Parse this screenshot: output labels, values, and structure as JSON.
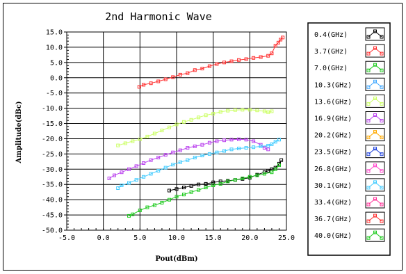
{
  "chart_data": {
    "type": "line",
    "title": "2nd Harmonic Wave",
    "xlabel": "Pout(dBm)",
    "ylabel": "Amplitude(dBc)",
    "xlim": [
      -5.0,
      25.0
    ],
    "ylim": [
      -50.0,
      15.0
    ],
    "xticks": [
      "-5.0",
      "0.0",
      "5.0",
      "10.0",
      "15.0",
      "20.0",
      "25.0"
    ],
    "yticks": [
      "15.0",
      "10.0",
      "5.0",
      "0.0",
      "-5.0",
      "-10.0",
      "-15.0",
      "-20.0",
      "-25.0",
      "-30.0",
      "-35.0",
      "-40.0",
      "-45.0",
      "-50.0"
    ],
    "grid": true,
    "legend_position": "right",
    "series": [
      {
        "name": "0.4(GHz)",
        "color": "#000000",
        "x": [
          9,
          10,
          11,
          12,
          13,
          14,
          15,
          16,
          17,
          18,
          19,
          20,
          21,
          22,
          22.5,
          23,
          23.5,
          24,
          24.3
        ],
        "y": [
          -37,
          -36.5,
          -36,
          -35.5,
          -35,
          -34.8,
          -34.3,
          -34,
          -33.8,
          -33.5,
          -33.2,
          -32.8,
          -31.8,
          -31,
          -30.5,
          -30,
          -29.5,
          -28.2,
          -27
        ]
      },
      {
        "name": "3.7(GHz)",
        "color": "#ff3030",
        "x": [
          4.9,
          5.5,
          6.5,
          7.5,
          8.5,
          9.5,
          10.5,
          11.5,
          12.5,
          13.5,
          14.5,
          15.5,
          16.5,
          17.5,
          18.5,
          19.5,
          20.5,
          21.5,
          22.5,
          23,
          23.5,
          23.9,
          24.2,
          24.5
        ],
        "y": [
          -3,
          -2.3,
          -1.8,
          -1.2,
          -0.5,
          0.2,
          1,
          1.5,
          2.5,
          3,
          3.8,
          4.5,
          5,
          5.4,
          5.8,
          6.1,
          6.5,
          6.8,
          7.2,
          8,
          10.5,
          11.5,
          12.5,
          13.2
        ]
      },
      {
        "name": "7.0(GHz)",
        "color": "#22cc22",
        "x": [
          3.5,
          4,
          5,
          6,
          7,
          8,
          9,
          10,
          11,
          12,
          13,
          14,
          15,
          16,
          17,
          18,
          19,
          20,
          21,
          22,
          23,
          23.5,
          24
        ],
        "y": [
          -45.3,
          -44.8,
          -43.5,
          -42.5,
          -41.8,
          -41,
          -40,
          -39,
          -38.3,
          -37.5,
          -36.8,
          -36,
          -35.3,
          -34.8,
          -34,
          -33.5,
          -33,
          -32.5,
          -32,
          -31.5,
          -31,
          -30,
          -28.7
        ]
      },
      {
        "name": "13.6(GHz)",
        "color": "#ccff66",
        "x": [
          2,
          3,
          4,
          5,
          6,
          7,
          8,
          9,
          10,
          11,
          12,
          13,
          14,
          15,
          16,
          17,
          18,
          19,
          20,
          21,
          22,
          22.5,
          23
        ],
        "y": [
          -22.2,
          -21.5,
          -20.8,
          -20.2,
          -19.3,
          -18.3,
          -17.3,
          -16.3,
          -15.3,
          -14.5,
          -13.8,
          -13,
          -12.3,
          -11.8,
          -11.2,
          -10.8,
          -10.6,
          -10.5,
          -10.5,
          -10.7,
          -11,
          -11.3,
          -11
        ]
      },
      {
        "name": "16.9(GHz)",
        "color": "#bb44ee",
        "x": [
          0.8,
          1.5,
          2.5,
          3.5,
          4.5,
          5.5,
          6.5,
          7.5,
          8.5,
          9.5,
          10.5,
          11.5,
          12.5,
          13.5,
          14.5,
          15.5,
          16.5,
          17.5,
          18.5,
          19.5,
          20.5,
          21.5,
          22,
          22.5
        ],
        "y": [
          -33,
          -32,
          -31,
          -30,
          -29,
          -28,
          -27,
          -26.2,
          -25.3,
          -24.5,
          -23.8,
          -23,
          -22.5,
          -22,
          -21.3,
          -20.8,
          -20.5,
          -20.3,
          -20.2,
          -20.3,
          -20.8,
          -22,
          -23,
          -23.5
        ]
      },
      {
        "name": "30.1(GHz)",
        "color": "#44ccff",
        "x": [
          2,
          2.5,
          3.5,
          4.5,
          5.5,
          6.5,
          7.5,
          8.5,
          9.5,
          10.5,
          11.5,
          12.5,
          13.5,
          14.5,
          15.5,
          16.5,
          17.5,
          18.5,
          19.5,
          20.5,
          21.5,
          22.5,
          23,
          23.5,
          24
        ],
        "y": [
          -36.2,
          -35.3,
          -34.5,
          -33.5,
          -32.5,
          -31.5,
          -30.5,
          -29.5,
          -28.5,
          -27.7,
          -27,
          -26.2,
          -25.5,
          -25,
          -24.5,
          -24,
          -23.5,
          -23.2,
          -23,
          -22.8,
          -22.5,
          -22.3,
          -21.8,
          -21,
          -20.3
        ]
      }
    ],
    "legend_entries": [
      {
        "name": "0.4(GHz)",
        "color": "#000000"
      },
      {
        "name": "3.7(GHz)",
        "color": "#ff3030"
      },
      {
        "name": "7.0(GHz)",
        "color": "#22cc22"
      },
      {
        "name": "10.3(GHz)",
        "color": "#44aaff"
      },
      {
        "name": "13.6(GHz)",
        "color": "#ccff66"
      },
      {
        "name": "16.9(GHz)",
        "color": "#bb44ee"
      },
      {
        "name": "20.2(GHz)",
        "color": "#ffaa00"
      },
      {
        "name": "23.5(GHz)",
        "color": "#2244dd"
      },
      {
        "name": "26.8(GHz)",
        "color": "#ff44cc"
      },
      {
        "name": "30.1(GHz)",
        "color": "#44ccff"
      },
      {
        "name": "33.4(GHz)",
        "color": "#ff3399"
      },
      {
        "name": "36.7(GHz)",
        "color": "#ff3030"
      },
      {
        "name": "40.0(GHz)",
        "color": "#22cc22"
      }
    ]
  }
}
